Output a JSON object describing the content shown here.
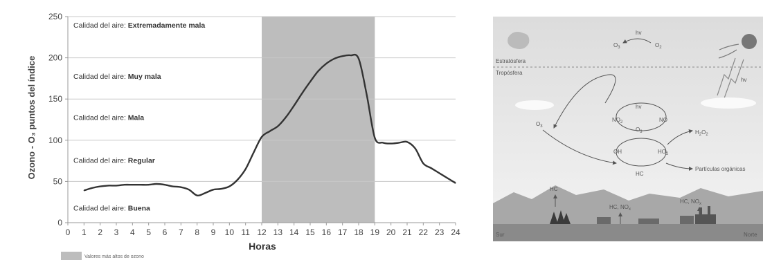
{
  "chart_data": {
    "type": "line",
    "title": "",
    "xlabel": "Horas",
    "ylabel": "Ozono - O₃ puntos del índice",
    "xlim": [
      0,
      24
    ],
    "ylim": [
      0,
      250
    ],
    "x_ticks": [
      0,
      1,
      2,
      3,
      4,
      5,
      6,
      7,
      8,
      9,
      10,
      11,
      12,
      13,
      14,
      15,
      16,
      17,
      18,
      19,
      20,
      21,
      22,
      23,
      24
    ],
    "y_ticks": [
      0,
      50,
      100,
      150,
      200,
      250
    ],
    "grid": "horizontal",
    "highlight": {
      "x_start": 12,
      "x_end": 19,
      "color": "#bdbdbd"
    },
    "legend": {
      "label": "Valores más altos de ozono",
      "placement": "bottom-left"
    },
    "bands": [
      {
        "prefix": "Calidad del aire:",
        "level": "Buena",
        "y": 18
      },
      {
        "prefix": "Calidad del aire:",
        "level": "Regular",
        "y": 76
      },
      {
        "prefix": "Calidad del aire:",
        "level": "Mala",
        "y": 128
      },
      {
        "prefix": "Calidad del aire:",
        "level": "Muy mala",
        "y": 178
      },
      {
        "prefix": "Calidad del aire:",
        "level": "Extremadamente mala",
        "y": 240
      }
    ],
    "series": [
      {
        "x": [
          1,
          1.5,
          2,
          2.5,
          3,
          3.5,
          4,
          4.5,
          5,
          5.5,
          6,
          6.5,
          7,
          7.5,
          8,
          8.5,
          9,
          9.5,
          10,
          10.5,
          11,
          11.5,
          12,
          12.5,
          13,
          13.5,
          14,
          14.5,
          15,
          15.5,
          16,
          16.5,
          17,
          17.5,
          18,
          18.5,
          19,
          19.5,
          20,
          20.5,
          21,
          21.5,
          22,
          22.5,
          23,
          23.5,
          24
        ],
        "y": [
          39,
          42,
          44,
          45,
          45,
          46,
          46,
          46,
          46,
          47,
          46,
          44,
          43,
          40,
          33,
          36,
          40,
          41,
          44,
          52,
          65,
          85,
          104,
          111,
          117,
          128,
          142,
          157,
          171,
          184,
          193,
          199,
          202,
          203,
          199,
          155,
          103,
          97,
          96,
          97,
          98,
          90,
          72,
          66,
          60,
          54,
          48
        ],
        "color": "#333333"
      }
    ]
  },
  "diagram": {
    "labels": {
      "estratosfera": "Estratósfera",
      "troposfera": "Tropósfera",
      "hv_top": "hv",
      "hv_right": "hv",
      "hv_cycle": "hv",
      "o3_left": "O",
      "o3_left_sub": "3",
      "o2_top": "O",
      "o2_top_sub": "2",
      "o3_mid": "O",
      "o3_mid_sub": "3",
      "o3_stra": "O",
      "o3_stra_sub": "3",
      "no2": "NO",
      "no2_sub": "2",
      "no": "NO",
      "oh": "OH",
      "ho2": "HO",
      "ho2_sub": "2",
      "h2o2": "H",
      "h2o2_a": "2",
      "h2o2_o": "O",
      "h2o2_b": "2",
      "hc": "HC",
      "particulas": "Partículas orgánicas",
      "ground_hc": "HC",
      "ground_hcno": "HC, NO",
      "ground_hcno_sub": "x",
      "ground_hcno2": "HC, NO",
      "ground_hcno2_sub": "x",
      "sur": "Sur",
      "norte": "Norte"
    }
  }
}
